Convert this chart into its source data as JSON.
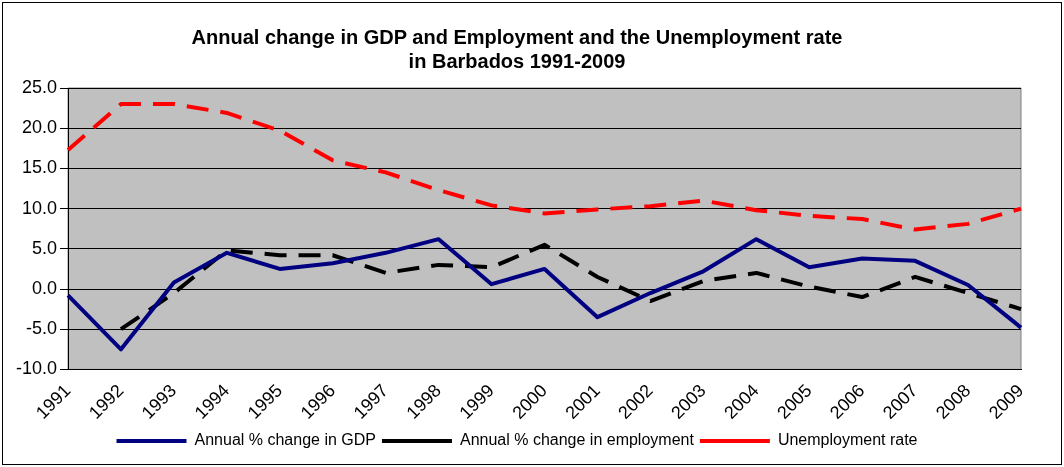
{
  "chart_data": {
    "type": "line",
    "title": "Annual change in GDP and Employment and the Unemployment rate\nin Barbados 1991-2009",
    "categories": [
      "1991",
      "1992",
      "1993",
      "1994",
      "1995",
      "1996",
      "1997",
      "1998",
      "1999",
      "2000",
      "2001",
      "2002",
      "2003",
      "2004",
      "2005",
      "2006",
      "2007",
      "2008",
      "2009"
    ],
    "series": [
      {
        "name": "Annual % change in GDP",
        "color": "#000080",
        "line_style": "solid",
        "values": [
          -0.8,
          -7.5,
          0.8,
          4.5,
          2.5,
          3.2,
          4.5,
          6.2,
          0.6,
          2.5,
          -3.5,
          -0.5,
          2.2,
          6.2,
          2.7,
          3.8,
          3.5,
          0.5,
          -4.8
        ]
      },
      {
        "name": "Annual % change in employment",
        "color": "#000000",
        "line_style": "dashed",
        "values": [
          null,
          -5.0,
          -0.5,
          4.8,
          4.2,
          4.2,
          2.0,
          3.0,
          2.7,
          5.5,
          1.5,
          -1.5,
          1.0,
          2.0,
          0.3,
          -1.0,
          1.5,
          -0.5,
          -2.5
        ]
      },
      {
        "name": "Unemployment rate",
        "color": "#ff0000",
        "line_style": "dashed",
        "values": [
          17.3,
          23.0,
          23.0,
          21.9,
          19.7,
          16.0,
          14.5,
          12.3,
          10.4,
          9.4,
          9.9,
          10.3,
          11.0,
          9.8,
          9.1,
          8.7,
          7.4,
          8.1,
          10.0
        ]
      }
    ],
    "ylim": [
      -10,
      25
    ],
    "yticks": [
      {
        "value": -10,
        "label": "-10.0"
      },
      {
        "value": -5,
        "label": "-5.0"
      },
      {
        "value": 0,
        "label": "0.0"
      },
      {
        "value": 5,
        "label": "5.0"
      },
      {
        "value": 10,
        "label": "10.0"
      },
      {
        "value": 15,
        "label": "15.0"
      },
      {
        "value": 20,
        "label": "20.0"
      },
      {
        "value": 25,
        "label": "25.0"
      }
    ],
    "grid": "y",
    "legend": "bottom",
    "marker": "none"
  }
}
